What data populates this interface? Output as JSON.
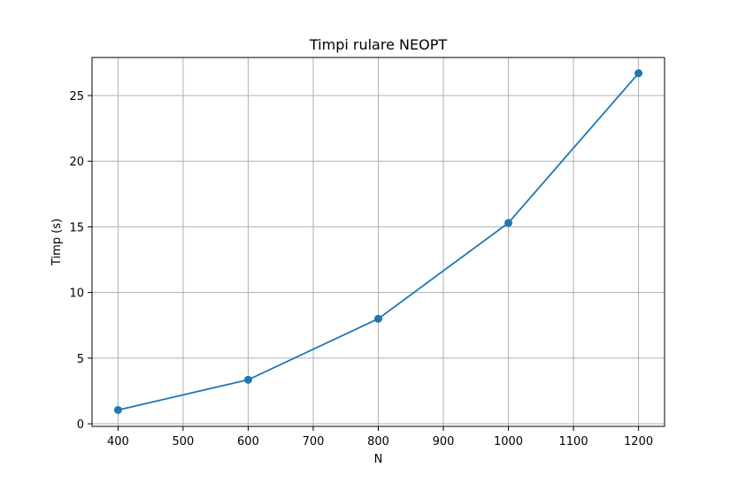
{
  "chart_data": {
    "type": "line",
    "title": "Timpi rulare NEOPT",
    "xlabel": "N",
    "ylabel": "Timp (s)",
    "x": [
      400,
      600,
      800,
      1000,
      1200
    ],
    "series": [
      {
        "values": [
          1.05,
          3.35,
          8.0,
          15.3,
          26.7
        ],
        "color": "#1f77b4",
        "marker": "circle"
      }
    ],
    "xlim": [
      360,
      1240
    ],
    "ylim": [
      -0.2,
      27.9
    ],
    "xticks": [
      400,
      500,
      600,
      700,
      800,
      900,
      1000,
      1100,
      1200
    ],
    "yticks": [
      0,
      5,
      10,
      15,
      20,
      25
    ],
    "grid": true,
    "legend": "none"
  }
}
